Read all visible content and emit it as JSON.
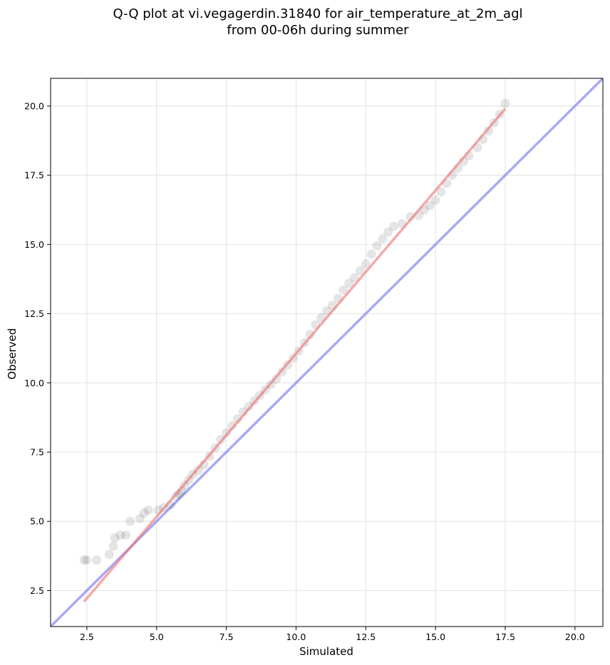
{
  "chart_data": {
    "type": "scatter",
    "title_line1": "Q-Q plot at vi.vegagerdin.31840 for air_temperature_at_2m_agl",
    "title_line2": "from 00-06h during summer",
    "xlabel": "Simulated",
    "ylabel": "Observed",
    "xlim": [
      1.2,
      21.0
    ],
    "ylim": [
      1.2,
      21.0
    ],
    "xticks": [
      2.5,
      5.0,
      7.5,
      10.0,
      12.5,
      15.0,
      17.5,
      20.0
    ],
    "yticks": [
      2.5,
      5.0,
      7.5,
      10.0,
      12.5,
      15.0,
      17.5,
      20.0
    ],
    "xtick_labels": [
      "2.5",
      "5.0",
      "7.5",
      "10.0",
      "12.5",
      "15.0",
      "17.5",
      "20.0"
    ],
    "ytick_labels": [
      "2.5",
      "5.0",
      "7.5",
      "10.0",
      "12.5",
      "15.0",
      "17.5",
      "20.0"
    ],
    "grid": true,
    "reference_line": {
      "x": [
        1.2,
        21.0
      ],
      "y": [
        1.2,
        21.0
      ],
      "color": "#6f6ff0"
    },
    "fit_line": {
      "x": [
        2.4,
        17.5
      ],
      "y": [
        2.1,
        19.9
      ],
      "color": "#ef6f6f"
    },
    "point_color": "#000000",
    "points": [
      [
        2.4,
        3.6
      ],
      [
        2.5,
        3.6
      ],
      [
        2.85,
        3.6
      ],
      [
        3.3,
        3.8
      ],
      [
        3.45,
        4.1
      ],
      [
        3.5,
        4.4
      ],
      [
        3.7,
        4.5
      ],
      [
        3.9,
        4.5
      ],
      [
        4.05,
        5.0
      ],
      [
        4.4,
        5.1
      ],
      [
        4.55,
        5.3
      ],
      [
        4.7,
        5.4
      ],
      [
        5.05,
        5.4
      ],
      [
        5.25,
        5.5
      ],
      [
        5.5,
        5.6
      ],
      [
        5.7,
        5.9
      ],
      [
        5.8,
        6.0
      ],
      [
        5.9,
        6.1
      ],
      [
        6.0,
        6.3
      ],
      [
        6.15,
        6.5
      ],
      [
        6.3,
        6.7
      ],
      [
        6.5,
        6.85
      ],
      [
        6.7,
        7.05
      ],
      [
        6.9,
        7.35
      ],
      [
        7.1,
        7.65
      ],
      [
        7.3,
        7.95
      ],
      [
        7.5,
        8.2
      ],
      [
        7.7,
        8.45
      ],
      [
        7.9,
        8.7
      ],
      [
        8.1,
        8.95
      ],
      [
        8.3,
        9.15
      ],
      [
        8.5,
        9.35
      ],
      [
        8.7,
        9.55
      ],
      [
        8.9,
        9.75
      ],
      [
        9.1,
        9.95
      ],
      [
        9.3,
        10.15
      ],
      [
        9.5,
        10.4
      ],
      [
        9.7,
        10.65
      ],
      [
        9.9,
        10.9
      ],
      [
        10.1,
        11.15
      ],
      [
        10.3,
        11.45
      ],
      [
        10.5,
        11.75
      ],
      [
        10.7,
        12.1
      ],
      [
        10.9,
        12.35
      ],
      [
        11.1,
        12.6
      ],
      [
        11.3,
        12.8
      ],
      [
        11.5,
        13.05
      ],
      [
        11.7,
        13.35
      ],
      [
        11.9,
        13.6
      ],
      [
        12.1,
        13.8
      ],
      [
        12.3,
        14.05
      ],
      [
        12.5,
        14.3
      ],
      [
        12.7,
        14.65
      ],
      [
        12.9,
        14.95
      ],
      [
        13.1,
        15.2
      ],
      [
        13.3,
        15.45
      ],
      [
        13.5,
        15.65
      ],
      [
        13.8,
        15.75
      ],
      [
        14.1,
        16.0
      ],
      [
        14.4,
        16.05
      ],
      [
        14.6,
        16.25
      ],
      [
        14.8,
        16.4
      ],
      [
        15.0,
        16.6
      ],
      [
        15.2,
        16.9
      ],
      [
        15.4,
        17.2
      ],
      [
        15.6,
        17.5
      ],
      [
        15.8,
        17.75
      ],
      [
        16.0,
        18.0
      ],
      [
        16.2,
        18.2
      ],
      [
        16.5,
        18.5
      ],
      [
        16.7,
        18.8
      ],
      [
        16.9,
        19.1
      ],
      [
        17.1,
        19.4
      ],
      [
        17.3,
        19.7
      ],
      [
        17.5,
        20.1
      ]
    ]
  }
}
